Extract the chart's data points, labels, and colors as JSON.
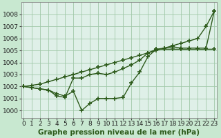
{
  "background_color": "#cce8d4",
  "plot_bg_color": "#e8f4e8",
  "grid_color": "#a8c8a8",
  "line_color": "#2d5a1b",
  "xlim": [
    -0.3,
    23.3
  ],
  "ylim": [
    999.4,
    1009.0
  ],
  "yticks": [
    1000,
    1001,
    1002,
    1003,
    1004,
    1005,
    1006,
    1007,
    1008
  ],
  "xticks": [
    0,
    1,
    2,
    3,
    4,
    5,
    6,
    7,
    8,
    9,
    10,
    11,
    12,
    13,
    14,
    15,
    16,
    17,
    18,
    19,
    20,
    21,
    22,
    23
  ],
  "series1": [
    1002.0,
    1001.9,
    1001.8,
    1001.7,
    1001.4,
    1001.2,
    1001.6,
    1000.0,
    1000.6,
    1001.0,
    1001.0,
    1001.0,
    1001.1,
    1002.3,
    1003.2,
    1004.5,
    1005.1,
    1005.1,
    1005.1,
    1005.1,
    1005.1,
    1005.1,
    1005.1,
    1005.1
  ],
  "series2": [
    1002.0,
    1001.9,
    1001.8,
    1001.7,
    1001.2,
    1001.1,
    1002.7,
    1002.7,
    1003.0,
    1003.1,
    1003.0,
    1003.2,
    1003.5,
    1003.8,
    1004.2,
    1004.8,
    1005.1,
    1005.2,
    1005.3,
    1005.2,
    1005.2,
    1005.2,
    1005.2,
    1008.3
  ],
  "series3": [
    1002.0,
    1002.1,
    1002.2,
    1002.4,
    1002.6,
    1002.8,
    1003.0,
    1003.2,
    1003.4,
    1003.6,
    1003.8,
    1004.0,
    1004.2,
    1004.4,
    1004.6,
    1004.8,
    1005.0,
    1005.2,
    1005.4,
    1005.6,
    1005.8,
    1006.0,
    1007.0,
    1008.3
  ],
  "xlabel": "Graphe pression niveau de la mer (hPa)",
  "tick_fontsize": 6.5,
  "xlabel_fontsize": 7.5
}
